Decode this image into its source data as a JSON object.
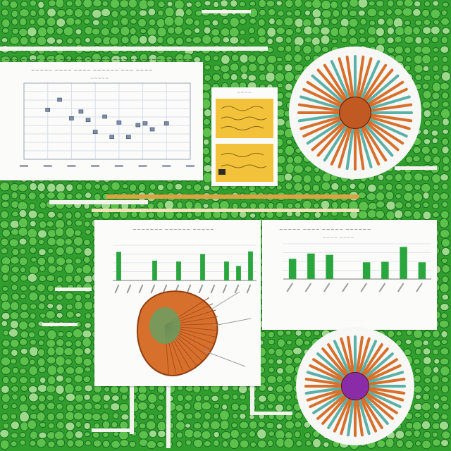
{
  "scene": {
    "palette": {
      "background": "#2f9e2c",
      "cell_light": "#5cc24c",
      "cell_outline": "#1d6b24",
      "paper": "#fbfcfa",
      "bar_green": "#2aa63e",
      "rule_gold": "#d9a441",
      "card_yellow": "#f2c33a",
      "flower_orange": "#d7702c",
      "flower_magenta": "#8a2ca8"
    },
    "illegible_text": {
      "top_banner": "~~~ ~~~~ ~~~ ~~~~~ ~~~~~ ~~~ ~~ ~~~~ ~~~~~~",
      "scatter_title": "~~~~~ ~~~~ ~~~~ ~~~~~~ ~~~ ~~~~",
      "scatter_subtitle": "~~~~~",
      "card_title": "~~~~",
      "bar_left_title": "~~~~~~~ ~~~~~~ ~~~~~",
      "bar_right_title": "~~~~~ ~~~~ ~~~~~ ~~~~~~",
      "bar_right_subtitle": "~~~~ ~~~~",
      "bottom_label": "~~~~~~"
    },
    "figures": {
      "scatter": {
        "points": [
          [
            1,
            5.8
          ],
          [
            1.5,
            7
          ],
          [
            2,
            4.8
          ],
          [
            2.4,
            5.6
          ],
          [
            2.7,
            4.6
          ],
          [
            3,
            3.2
          ],
          [
            3.4,
            5
          ],
          [
            3.7,
            2.6
          ],
          [
            4,
            4.3
          ],
          [
            4.4,
            2.6
          ],
          [
            4.8,
            4
          ],
          [
            5.1,
            4.2
          ],
          [
            5.4,
            3.5
          ],
          [
            6,
            4.2
          ]
        ],
        "xlim": [
          0,
          7
        ],
        "ylim": [
          0,
          9
        ],
        "grid": true
      },
      "bar_left": {
        "values": [
          6.5,
          0,
          0,
          4.5,
          0,
          4.3,
          0,
          6,
          0,
          4.3,
          3.3,
          6.6
        ],
        "ylim": [
          0,
          8
        ]
      },
      "bar_right": {
        "values": [
          4.6,
          5.8,
          5.5,
          0,
          3.8,
          3.9,
          7.3,
          3.8
        ],
        "ylim": [
          0,
          8
        ]
      }
    }
  }
}
